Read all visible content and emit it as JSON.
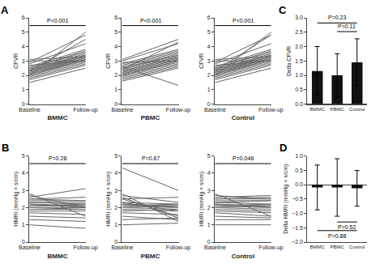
{
  "chart_data": [
    {
      "type": "line",
      "title": "A",
      "xlabel": "BMMC",
      "ylabel": "CFVR",
      "categories": [
        "Baseline",
        "Follow-up"
      ],
      "color": "#666666",
      "series": [
        {
          "values": [
            1.5,
            2.5
          ]
        },
        {
          "values": [
            1.7,
            2.7
          ]
        },
        {
          "values": [
            1.8,
            2.8
          ]
        },
        {
          "values": [
            1.9,
            2.9
          ]
        },
        {
          "values": [
            2.0,
            3.0
          ]
        },
        {
          "values": [
            2.0,
            3.1
          ]
        },
        {
          "values": [
            2.1,
            3.1
          ]
        },
        {
          "values": [
            2.1,
            3.2
          ]
        },
        {
          "values": [
            2.2,
            3.2
          ]
        },
        {
          "values": [
            2.2,
            3.3
          ]
        },
        {
          "values": [
            2.3,
            3.3
          ]
        },
        {
          "values": [
            2.3,
            3.4
          ]
        },
        {
          "values": [
            2.4,
            3.4
          ]
        },
        {
          "values": [
            2.4,
            3.5
          ]
        },
        {
          "values": [
            2.5,
            3.6
          ]
        },
        {
          "values": [
            2.5,
            3.7
          ]
        },
        {
          "values": [
            2.6,
            3.8
          ]
        },
        {
          "values": [
            2.7,
            3.0
          ]
        },
        {
          "values": [
            2.8,
            4.2
          ]
        },
        {
          "values": [
            2.9,
            4.8
          ]
        },
        {
          "values": [
            3.0,
            3.0
          ]
        },
        {
          "values": [
            3.1,
            3.3
          ]
        },
        {
          "values": [
            2.0,
            5.0
          ]
        },
        {
          "values": [
            2.3,
            4.5
          ]
        }
      ],
      "ylim": [
        0,
        6
      ],
      "yticks": [
        0,
        1,
        2,
        3,
        4,
        5,
        6
      ],
      "grid": false,
      "annotations": [
        {
          "text": "P<0.001",
          "from": "Baseline",
          "to": "Follow-up",
          "y": 5.46
        }
      ]
    },
    {
      "type": "line",
      "xlabel": "PBMC",
      "ylabel": "CFVR",
      "categories": [
        "Baseline",
        "Follow-up"
      ],
      "color": "#666666",
      "series": [
        {
          "values": [
            1.6,
            2.5
          ]
        },
        {
          "values": [
            1.8,
            2.7
          ]
        },
        {
          "values": [
            1.9,
            2.8
          ]
        },
        {
          "values": [
            2.0,
            2.9
          ]
        },
        {
          "values": [
            2.0,
            3.0
          ]
        },
        {
          "values": [
            2.1,
            3.1
          ]
        },
        {
          "values": [
            2.1,
            3.1
          ]
        },
        {
          "values": [
            2.2,
            3.2
          ]
        },
        {
          "values": [
            2.2,
            3.2
          ]
        },
        {
          "values": [
            2.3,
            3.3
          ]
        },
        {
          "values": [
            2.3,
            3.3
          ]
        },
        {
          "values": [
            2.4,
            3.4
          ]
        },
        {
          "values": [
            2.5,
            3.4
          ]
        },
        {
          "values": [
            2.5,
            3.5
          ]
        },
        {
          "values": [
            2.6,
            3.6
          ]
        },
        {
          "values": [
            2.7,
            3.7
          ]
        },
        {
          "values": [
            2.8,
            3.8
          ]
        },
        {
          "values": [
            2.9,
            3.0
          ]
        },
        {
          "values": [
            3.0,
            4.2
          ]
        },
        {
          "values": [
            3.1,
            4.5
          ]
        },
        {
          "values": [
            1.7,
            2.6
          ]
        },
        {
          "values": [
            2.0,
            3.0
          ]
        },
        {
          "values": [
            2.4,
            4.3
          ]
        },
        {
          "values": [
            2.6,
            1.3
          ]
        }
      ],
      "ylim": [
        0,
        6
      ],
      "yticks": [
        0,
        1,
        2,
        3,
        4,
        5,
        6
      ],
      "grid": false,
      "annotations": [
        {
          "text": "P<0.001",
          "from": "Baseline",
          "to": "Follow-up",
          "y": 5.46
        }
      ]
    },
    {
      "type": "line",
      "xlabel": "Control",
      "ylabel": "CFVR",
      "categories": [
        "Baseline",
        "Follow-up"
      ],
      "color": "#666666",
      "series": [
        {
          "values": [
            1.5,
            2.5
          ]
        },
        {
          "values": [
            1.7,
            2.7
          ]
        },
        {
          "values": [
            1.8,
            2.8
          ]
        },
        {
          "values": [
            1.9,
            2.9
          ]
        },
        {
          "values": [
            2.0,
            3.0
          ]
        },
        {
          "values": [
            2.0,
            3.1
          ]
        },
        {
          "values": [
            2.1,
            3.1
          ]
        },
        {
          "values": [
            2.1,
            3.2
          ]
        },
        {
          "values": [
            2.2,
            3.2
          ]
        },
        {
          "values": [
            2.2,
            3.3
          ]
        },
        {
          "values": [
            2.3,
            3.3
          ]
        },
        {
          "values": [
            2.3,
            3.4
          ]
        },
        {
          "values": [
            2.4,
            3.4
          ]
        },
        {
          "values": [
            2.4,
            3.5
          ]
        },
        {
          "values": [
            2.5,
            3.6
          ]
        },
        {
          "values": [
            2.5,
            3.7
          ]
        },
        {
          "values": [
            2.6,
            3.8
          ]
        },
        {
          "values": [
            2.7,
            3.0
          ]
        },
        {
          "values": [
            2.8,
            4.2
          ]
        },
        {
          "values": [
            2.9,
            4.8
          ]
        },
        {
          "values": [
            3.0,
            3.0
          ]
        },
        {
          "values": [
            3.1,
            3.3
          ]
        },
        {
          "values": [
            2.0,
            5.0
          ]
        },
        {
          "values": [
            2.3,
            4.8
          ]
        }
      ],
      "ylim": [
        0,
        6
      ],
      "yticks": [
        0,
        1,
        2,
        3,
        4,
        5,
        6
      ],
      "grid": false,
      "annotations": [
        {
          "text": "P<0.001",
          "from": "Baseline",
          "to": "Follow-up",
          "y": 5.46
        }
      ]
    },
    {
      "type": "bar",
      "title": "C",
      "ylabel": "Delta CFVR",
      "categories": [
        "BMMC",
        "PBMC",
        "Control"
      ],
      "values": [
        1.15,
        1.0,
        1.45
      ],
      "errors": [
        0.85,
        0.75,
        0.82
      ],
      "color": "#111111",
      "ylim": [
        0.0,
        3.0
      ],
      "yticks": [
        {
          "value": 0.0,
          "label": "0.0"
        },
        0.5,
        {
          "value": 1.0,
          "label": "1.0"
        },
        1.5,
        {
          "value": 2.0,
          "label": "2.0"
        },
        2.5,
        {
          "value": 3.0,
          "label": "3.0"
        }
      ],
      "grid": false,
      "annotations": [
        {
          "text": "P=0.23",
          "from": "BMMC",
          "to": "Control",
          "y": 2.82
        },
        {
          "text": "P=0.11",
          "from": "PBMC",
          "to": "Control",
          "y": 2.52
        }
      ]
    },
    {
      "type": "line",
      "title": "B",
      "xlabel": "BMMC",
      "ylabel": "HMRI (mmHg × s/cm)",
      "categories": [
        "Baseline",
        "Follow-up"
      ],
      "color": "#666666",
      "series": [
        {
          "values": [
            1.0,
            0.8
          ]
        },
        {
          "values": [
            1.3,
            1.2
          ]
        },
        {
          "values": [
            1.5,
            1.4
          ]
        },
        {
          "values": [
            1.7,
            1.6
          ]
        },
        {
          "values": [
            1.8,
            1.8
          ]
        },
        {
          "values": [
            1.9,
            1.9
          ]
        },
        {
          "values": [
            2.0,
            1.9
          ]
        },
        {
          "values": [
            2.0,
            2.0
          ]
        },
        {
          "values": [
            2.1,
            2.1
          ]
        },
        {
          "values": [
            2.1,
            2.2
          ]
        },
        {
          "values": [
            2.2,
            2.0
          ]
        },
        {
          "values": [
            2.2,
            2.1
          ]
        },
        {
          "values": [
            2.3,
            2.2
          ]
        },
        {
          "values": [
            2.3,
            2.3
          ]
        },
        {
          "values": [
            2.4,
            2.4
          ]
        },
        {
          "values": [
            2.5,
            2.4
          ]
        },
        {
          "values": [
            2.5,
            2.6
          ]
        },
        {
          "values": [
            2.6,
            3.1
          ]
        },
        {
          "values": [
            2.7,
            2.0
          ]
        },
        {
          "values": [
            2.8,
            1.5
          ]
        }
      ],
      "ylim": [
        0,
        5
      ],
      "yticks": [
        0,
        1,
        2,
        3,
        4,
        5
      ],
      "grid": false,
      "annotations": [
        {
          "text": "P=0.28",
          "from": "Baseline",
          "to": "Follow-up",
          "y": 4.55
        }
      ]
    },
    {
      "type": "line",
      "xlabel": "PBMC",
      "ylabel": "HMRI (mmHg × s/cm)",
      "categories": [
        "Baseline",
        "Follow-up"
      ],
      "color": "#666666",
      "series": [
        {
          "values": [
            1.0,
            1.1
          ]
        },
        {
          "values": [
            1.3,
            1.4
          ]
        },
        {
          "values": [
            1.5,
            1.3
          ]
        },
        {
          "values": [
            1.7,
            1.6
          ]
        },
        {
          "values": [
            1.8,
            1.9
          ]
        },
        {
          "values": [
            1.9,
            1.8
          ]
        },
        {
          "values": [
            2.0,
            1.9
          ]
        },
        {
          "values": [
            2.0,
            2.1
          ]
        },
        {
          "values": [
            2.1,
            2.0
          ]
        },
        {
          "values": [
            2.1,
            2.2
          ]
        },
        {
          "values": [
            2.2,
            2.1
          ]
        },
        {
          "values": [
            2.2,
            2.0
          ]
        },
        {
          "values": [
            2.3,
            2.2
          ]
        },
        {
          "values": [
            2.3,
            1.8
          ]
        },
        {
          "values": [
            4.3,
            3.0
          ]
        },
        {
          "values": [
            2.5,
            1.5
          ]
        },
        {
          "values": [
            2.5,
            2.6
          ]
        },
        {
          "values": [
            2.6,
            1.4
          ]
        },
        {
          "values": [
            2.7,
            2.3
          ]
        },
        {
          "values": [
            2.8,
            1.2
          ]
        }
      ],
      "ylim": [
        0,
        5
      ],
      "yticks": [
        0,
        1,
        2,
        3,
        4,
        5
      ],
      "grid": false,
      "annotations": [
        {
          "text": "P=0.67",
          "from": "Baseline",
          "to": "Follow-up",
          "y": 4.55
        }
      ]
    },
    {
      "type": "line",
      "xlabel": "Control",
      "ylabel": "HMRI (mmHg × s/cm)",
      "categories": [
        "Baseline",
        "Follow-up"
      ],
      "color": "#666666",
      "series": [
        {
          "values": [
            1.0,
            1.0
          ]
        },
        {
          "values": [
            1.3,
            1.3
          ]
        },
        {
          "values": [
            1.5,
            1.4
          ]
        },
        {
          "values": [
            1.7,
            1.5
          ]
        },
        {
          "values": [
            1.8,
            1.7
          ]
        },
        {
          "values": [
            1.9,
            1.8
          ]
        },
        {
          "values": [
            2.0,
            1.9
          ]
        },
        {
          "values": [
            2.0,
            2.1
          ]
        },
        {
          "values": [
            2.1,
            2.0
          ]
        },
        {
          "values": [
            2.1,
            2.2
          ]
        },
        {
          "values": [
            2.2,
            2.1
          ]
        },
        {
          "values": [
            2.2,
            2.0
          ]
        },
        {
          "values": [
            2.3,
            2.2
          ]
        },
        {
          "values": [
            2.3,
            2.4
          ]
        },
        {
          "values": [
            2.4,
            2.4
          ]
        },
        {
          "values": [
            2.5,
            2.5
          ]
        },
        {
          "values": [
            2.5,
            2.6
          ]
        },
        {
          "values": [
            2.6,
            2.7
          ]
        },
        {
          "values": [
            2.7,
            2.5
          ]
        },
        {
          "values": [
            2.8,
            1.5
          ]
        }
      ],
      "ylim": [
        0,
        5
      ],
      "yticks": [
        0,
        1,
        2,
        3,
        4,
        5
      ],
      "grid": false,
      "annotations": [
        {
          "text": "P=0.046",
          "from": "Baseline",
          "to": "Follow-up",
          "y": 4.55
        }
      ]
    },
    {
      "type": "bar",
      "title": "D",
      "ylabel": "Delta HMRI (mmHg × s/cm)",
      "categories": [
        "BMMC",
        "PBMC",
        "Control"
      ],
      "values": [
        -0.1,
        -0.1,
        -0.13
      ],
      "errors": [
        0.78,
        1.0,
        0.62
      ],
      "color": "#111111",
      "ylim": [
        -2.0,
        1.0
      ],
      "yticks": [
        {
          "value": -2.0,
          "label": "−2.0"
        },
        {
          "value": -1.5,
          "label": "−1.5"
        },
        {
          "value": -1.0,
          "label": "−1.0"
        },
        {
          "value": -0.5,
          "label": "−0.5"
        },
        {
          "value": 0.0,
          "label": "0.0"
        },
        0.5,
        {
          "value": 1.0,
          "label": "1.0"
        }
      ],
      "grid": false,
      "annotations": [
        {
          "text": "P=0.52",
          "from": "PBMC",
          "to": "Control",
          "y": -1.3
        },
        {
          "text": "P=0.88",
          "from": "BMMC",
          "to": "Control",
          "y": -1.6
        }
      ]
    }
  ]
}
